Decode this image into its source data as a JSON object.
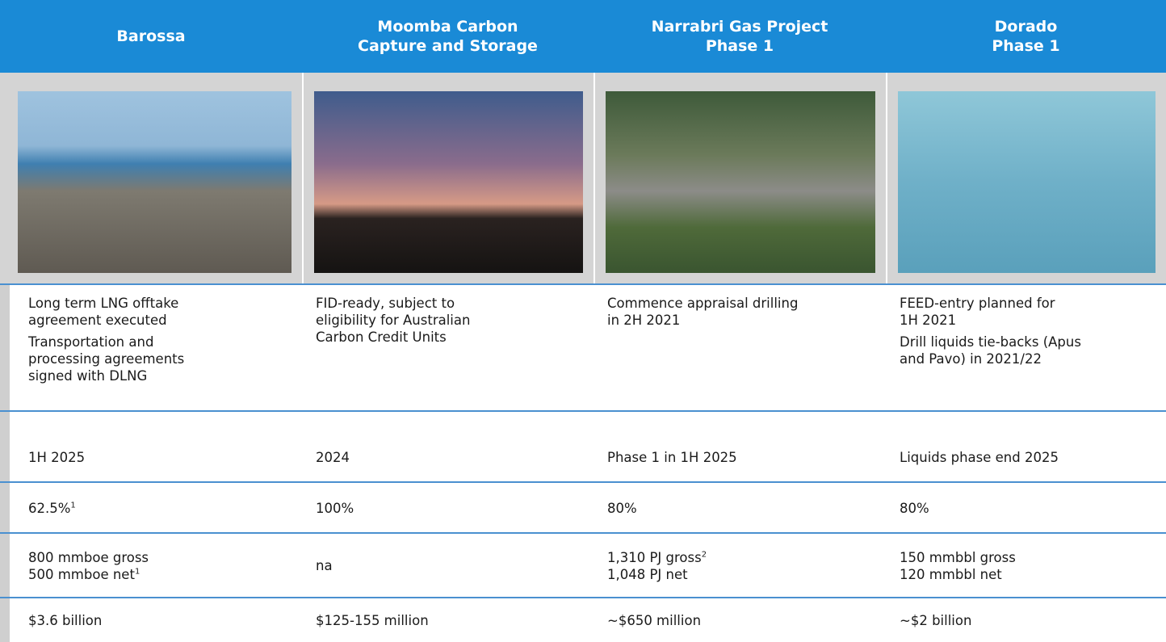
{
  "table": {
    "header": [
      [
        "Barossa"
      ],
      [
        "Moomba Carbon",
        "Capture and Storage"
      ],
      [
        "Narrabri Gas Project",
        "Phase 1"
      ],
      [
        "Dorado",
        "Phase 1"
      ]
    ],
    "rows": [
      [
        [
          [
            "Long term LNG offtake",
            "agreement executed"
          ],
          [
            "Transportation and",
            "processing agreements",
            "signed with DLNG"
          ]
        ],
        [
          [
            "FID-ready, subject to",
            "eligibility for Australian",
            "Carbon Credit Units"
          ]
        ],
        [
          [
            "Commence appraisal drilling",
            "in 2H 2021"
          ]
        ],
        [
          [
            "FEED-entry planned for",
            "1H 2021"
          ],
          [
            "Drill liquids tie-backs (Apus",
            "and Pavo) in 2021/22"
          ]
        ]
      ],
      [
        [
          [
            "1H 2025"
          ]
        ],
        [
          [
            "2024"
          ]
        ],
        [
          [
            "Phase 1 in 1H 2025"
          ]
        ],
        [
          [
            "Liquids phase end 2025"
          ]
        ]
      ],
      [
        [
          [
            {
              "text": "62.5%",
              "note": "1"
            }
          ]
        ],
        [
          [
            "100%"
          ]
        ],
        [
          [
            "80%"
          ]
        ],
        [
          [
            "80%"
          ]
        ]
      ],
      [
        [
          [
            "800 mmboe gross",
            {
              "text": "500 mmboe net",
              "note": "1"
            }
          ]
        ],
        [
          [
            "na"
          ]
        ],
        [
          [
            {
              "text": "1,310 PJ gross",
              "note": "2"
            },
            "1,048 PJ net"
          ]
        ],
        [
          [
            "150 mmbbl gross",
            "120 mmbbl net"
          ]
        ]
      ],
      [
        [
          [
            "$3.6 billion"
          ]
        ],
        [
          [
            "$125-155 million"
          ]
        ],
        [
          [
            "~$650 million"
          ]
        ],
        [
          [
            "~$2 billion"
          ]
        ]
      ]
    ]
  }
}
